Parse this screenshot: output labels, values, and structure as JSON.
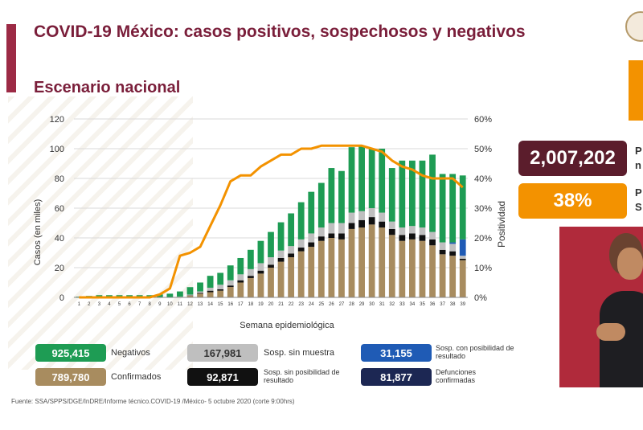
{
  "title": "COVID-19 México: casos positivos, sospechosos y negativos",
  "subtitle": "Escenario nacional",
  "side_stats": {
    "total_value": "2,007,202",
    "total_label_fragment": "P",
    "total_label_fragment2": "n",
    "positivity_value": "38%",
    "positivity_label_fragment": "P",
    "positivity_label_fragment2": "S",
    "total_color": "#5b1d2c",
    "positivity_color": "#f39200"
  },
  "legend": [
    {
      "value": "925,415",
      "label": "Negativos",
      "color": "#1e9c54"
    },
    {
      "value": "167,981",
      "label": "Sosp. sin muestra",
      "color": "#bfbfbf"
    },
    {
      "value": "31,155",
      "label": "Sosp. con posibilidad de resultado",
      "color": "#1f5bb5"
    },
    {
      "value": "789,780",
      "label": "Confirmados",
      "color": "#a88c5f"
    },
    {
      "value": "92,871",
      "label": "Sosp. sin posibilidad de resultado",
      "color": "#111111"
    },
    {
      "value": "81,877",
      "label": "Defunciones confirmadas",
      "color": "#1c2753"
    }
  ],
  "source": "Fuente: SSA/SPPS/DGE/InDRE/Informe técnico.COVID-19 /México- 5 octubre 2020 (corte 9:00hrs)",
  "chart_data": {
    "type": "bar",
    "stacked": true,
    "xlabel": "Semana epidemiológica",
    "ylabel": "Casos (en miles)",
    "y2label": "Positividad",
    "ylim": [
      0,
      120
    ],
    "y2lim": [
      0,
      60
    ],
    "yticks": [
      "0",
      "20",
      "40",
      "60",
      "80",
      "100",
      "120"
    ],
    "y2ticks": [
      "0%",
      "10%",
      "20%",
      "30%",
      "40%",
      "50%",
      "60%"
    ],
    "categories": [
      "1",
      "2",
      "3",
      "4",
      "5",
      "6",
      "7",
      "8",
      "9",
      "10",
      "11",
      "12",
      "13",
      "14",
      "15",
      "16",
      "17",
      "18",
      "19",
      "20",
      "21",
      "22",
      "23",
      "24",
      "25",
      "26",
      "27",
      "28",
      "29",
      "30",
      "31",
      "32",
      "33",
      "34",
      "35",
      "36",
      "37",
      "38",
      "39"
    ],
    "series": [
      {
        "key": "confirmados",
        "color": "#a88c5f",
        "values": [
          0,
          0,
          0,
          0,
          0,
          0,
          0,
          0,
          0,
          0,
          0.3,
          1.2,
          2.5,
          3.5,
          4.5,
          7,
          10,
          13,
          16,
          20,
          24,
          27,
          31,
          34,
          38,
          40,
          39,
          46,
          47,
          49,
          47,
          42,
          38,
          39,
          38,
          35,
          29,
          28,
          25
        ]
      },
      {
        "key": "sosp_sin_posibilidad",
        "color": "#111111",
        "values": [
          0,
          0,
          0,
          0,
          0,
          0,
          0,
          0,
          0,
          0,
          0,
          0.2,
          0.5,
          1,
          1,
          1,
          1.5,
          1.5,
          2,
          2,
          2.5,
          2.5,
          2.5,
          3,
          3,
          3,
          4,
          4,
          5,
          5,
          4,
          4,
          4,
          4,
          4,
          4,
          3,
          3,
          1
        ]
      },
      {
        "key": "sosp_sin_muestra",
        "color": "#bfbfbf",
        "values": [
          0,
          0,
          0,
          0,
          0,
          0,
          0,
          0,
          0,
          0,
          0.2,
          0.5,
          1,
          2,
          3,
          3.5,
          4,
          4.5,
          5,
          5,
          5,
          5,
          5.5,
          6,
          6,
          7,
          7,
          7,
          6,
          6,
          6,
          5,
          5,
          5,
          5,
          5,
          5,
          5,
          2
        ]
      },
      {
        "key": "sosp_con_posibilidad",
        "color": "#1f5bb5",
        "values": [
          0,
          0,
          0,
          0,
          0,
          0,
          0,
          0,
          0,
          0,
          0,
          0,
          0,
          0,
          0,
          0,
          0,
          0,
          0,
          0,
          0,
          0,
          0,
          0,
          0,
          0,
          0,
          0,
          0,
          0,
          0,
          0,
          0,
          0,
          0,
          0,
          0,
          1,
          11
        ]
      },
      {
        "key": "negativos",
        "color": "#1e9c54",
        "values": [
          0.5,
          1,
          1.5,
          1.5,
          1.5,
          1.5,
          1.5,
          1.5,
          2,
          2.5,
          3.5,
          5,
          6,
          8,
          8,
          10,
          11,
          13,
          15,
          17,
          19,
          22,
          25,
          28,
          30,
          37,
          35,
          44,
          44,
          40,
          43,
          36,
          45,
          44,
          45,
          52,
          46,
          46,
          43
        ]
      }
    ],
    "positividad": {
      "color": "#f39200",
      "values": [
        0,
        0,
        0,
        0,
        0,
        0,
        0,
        0,
        1,
        3,
        14,
        15,
        17,
        24,
        31,
        39,
        41,
        41,
        44,
        46,
        48,
        48,
        50,
        50,
        51,
        51,
        51,
        51,
        51,
        50,
        49,
        46,
        44,
        43,
        41,
        40,
        40,
        40,
        37
      ]
    }
  }
}
